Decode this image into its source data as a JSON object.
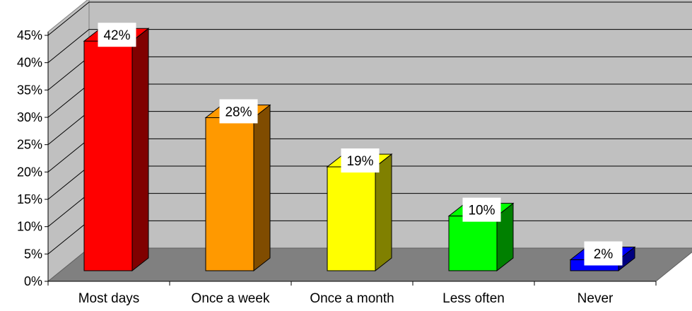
{
  "chart_data": {
    "type": "bar",
    "three_d": true,
    "categories": [
      "Most days",
      "Once a week",
      "Once a month",
      "Less often",
      "Never"
    ],
    "values": [
      42,
      28,
      19,
      10,
      2
    ],
    "data_labels": [
      "42%",
      "28%",
      "19%",
      "10%",
      "2%"
    ],
    "y_ticks": [
      "0%",
      "5%",
      "10%",
      "15%",
      "20%",
      "25%",
      "30%",
      "35%",
      "40%",
      "45%"
    ],
    "ylim": [
      0,
      45
    ],
    "y_unit": "%",
    "grid": true,
    "legend": "none",
    "colors": {
      "bars": [
        "#ff0000",
        "#ff9900",
        "#ffff00",
        "#00ff00",
        "#0000ff"
      ],
      "bar_sides": [
        "#800000",
        "#804c00",
        "#808000",
        "#008000",
        "#000080"
      ],
      "wall": "#c0c0c0",
      "floor": "#808080",
      "gridline": "#000000"
    }
  }
}
